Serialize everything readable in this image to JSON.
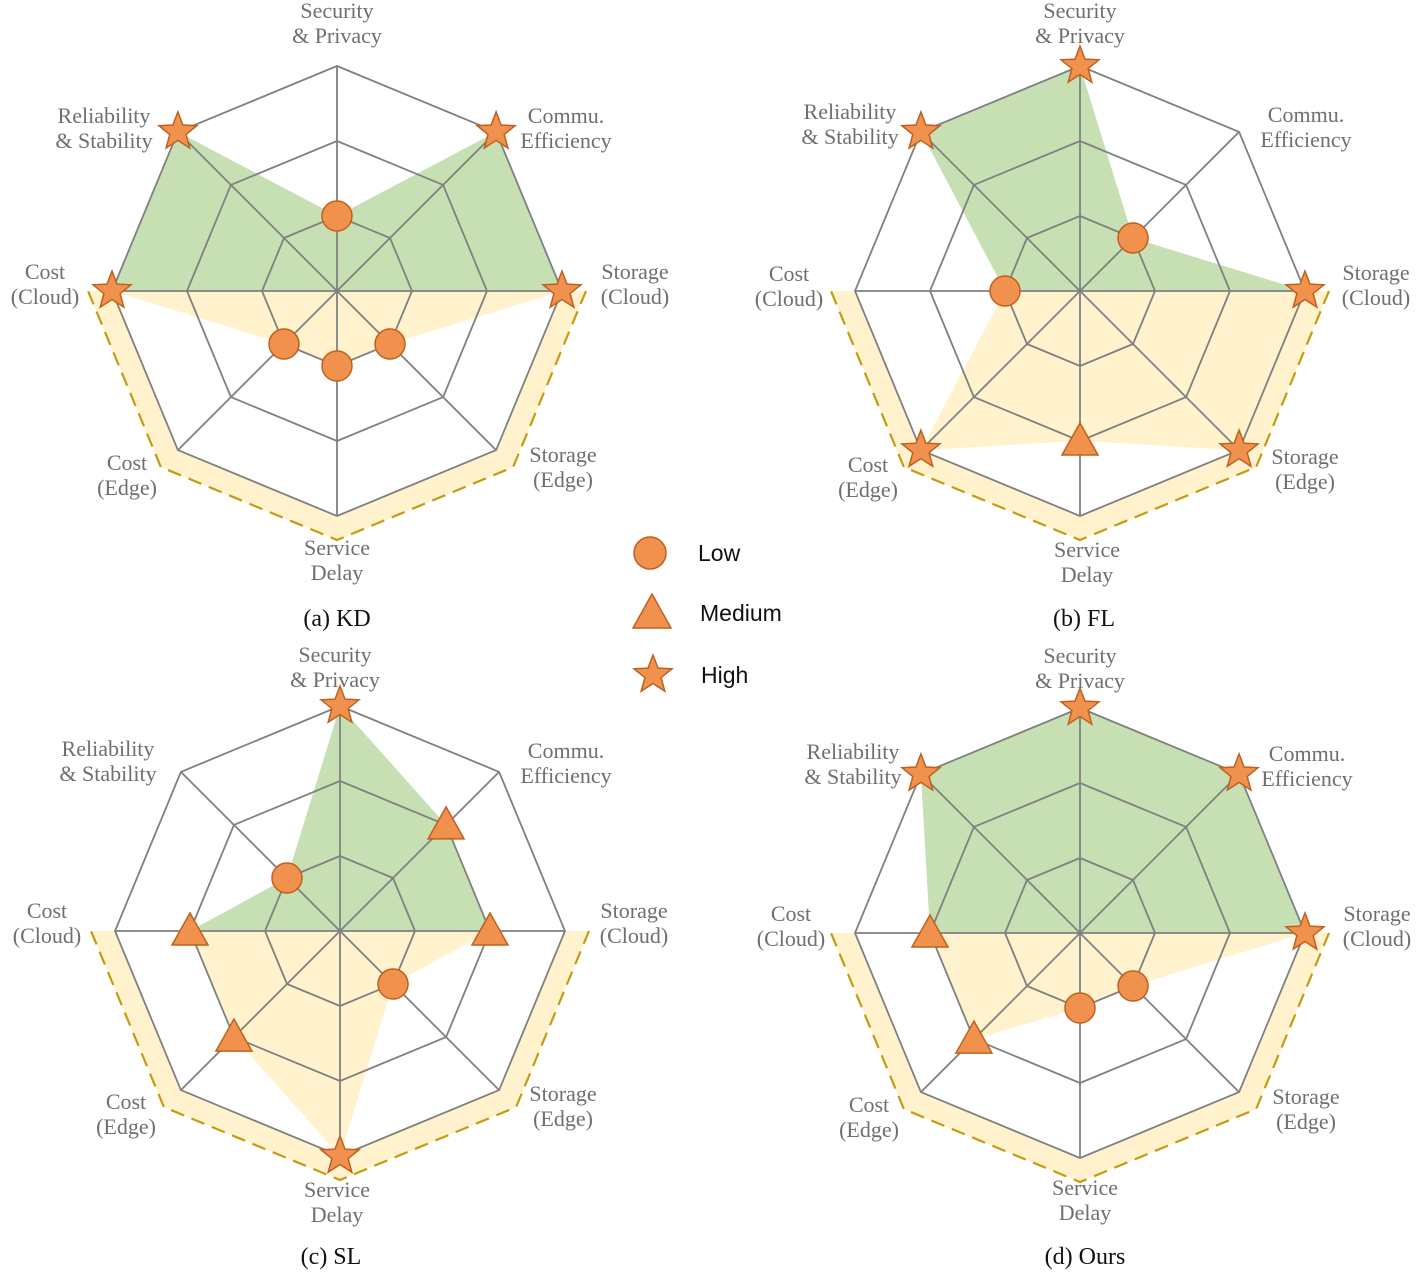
{
  "colors": {
    "green_fill": "#c6e0b4",
    "yellow_fill": "#fff2cc",
    "grid": "#808080",
    "marker_fill": "#f0914e",
    "marker_stroke": "#c0601e",
    "dash": "#c79a12"
  },
  "legend": {
    "items": [
      {
        "label": "Low",
        "shape": "circle",
        "level": 1
      },
      {
        "label": "Medium",
        "shape": "triangle",
        "level": 2
      },
      {
        "label": "High",
        "shape": "star",
        "level": 3
      }
    ]
  },
  "chart_data": [
    {
      "type": "radar",
      "title": "(a) KD",
      "axes": [
        "Security\n& Privacy",
        "Commu.\nEfficiency",
        "Storage\n(Cloud)",
        "Storage\n(Edge)",
        "Service\nDelay",
        "Cost\n(Edge)",
        "Cost\n(Cloud)",
        "Reliability\n& Stability"
      ],
      "scale": {
        "min": 0,
        "max": 3,
        "levels": 3
      },
      "values": [
        1,
        3,
        3,
        1,
        1,
        1,
        3,
        3
      ],
      "green_axes": [
        6,
        7,
        0,
        1,
        2
      ],
      "yellow_axes": [
        2,
        3,
        4,
        5,
        6
      ],
      "dashed_border_axes": [
        2,
        3,
        4,
        5,
        6
      ]
    },
    {
      "type": "radar",
      "title": "(b) FL",
      "axes": [
        "Security\n& Privacy",
        "Commu.\nEfficiency",
        "Storage\n(Cloud)",
        "Storage\n(Edge)",
        "Service\nDelay",
        "Cost\n(Edge)",
        "Cost\n(Cloud)",
        "Reliability\n& Stability"
      ],
      "scale": {
        "min": 0,
        "max": 3,
        "levels": 3
      },
      "values": [
        3,
        1,
        3,
        3,
        2,
        3,
        1,
        3
      ],
      "green_axes": [
        6,
        7,
        0,
        1,
        2
      ],
      "yellow_axes": [
        2,
        3,
        4,
        5,
        6
      ],
      "dashed_border_axes": [
        2,
        3,
        4,
        5,
        6
      ]
    },
    {
      "type": "radar",
      "title": "(c) SL",
      "axes": [
        "Security\n& Privacy",
        "Commu.\nEfficiency",
        "Storage\n(Cloud)",
        "Storage\n(Edge)",
        "Service\nDelay",
        "Cost\n(Edge)",
        "Cost\n(Cloud)",
        "Reliability\n& Stability"
      ],
      "scale": {
        "min": 0,
        "max": 3,
        "levels": 3
      },
      "values": [
        3,
        2,
        2,
        1,
        3,
        2,
        2,
        1
      ],
      "green_axes": [
        6,
        7,
        0,
        1,
        2
      ],
      "yellow_axes": [
        2,
        3,
        4,
        5,
        6
      ],
      "dashed_border_axes": [
        2,
        3,
        4,
        5,
        6
      ]
    },
    {
      "type": "radar",
      "title": "(d) Ours",
      "axes": [
        "Security\n& Privacy",
        "Commu.\nEfficiency",
        "Storage\n(Cloud)",
        "Storage\n(Edge)",
        "Service\nDelay",
        "Cost\n(Edge)",
        "Cost\n(Cloud)",
        "Reliability\n& Stability"
      ],
      "scale": {
        "min": 0,
        "max": 3,
        "levels": 3
      },
      "values": [
        3,
        3,
        3,
        1,
        1,
        2,
        2,
        3
      ],
      "green_axes": [
        6,
        7,
        0,
        1,
        2
      ],
      "yellow_axes": [
        2,
        3,
        4,
        5,
        6
      ],
      "dashed_border_axes": [
        2,
        3,
        4,
        5,
        6
      ]
    }
  ]
}
